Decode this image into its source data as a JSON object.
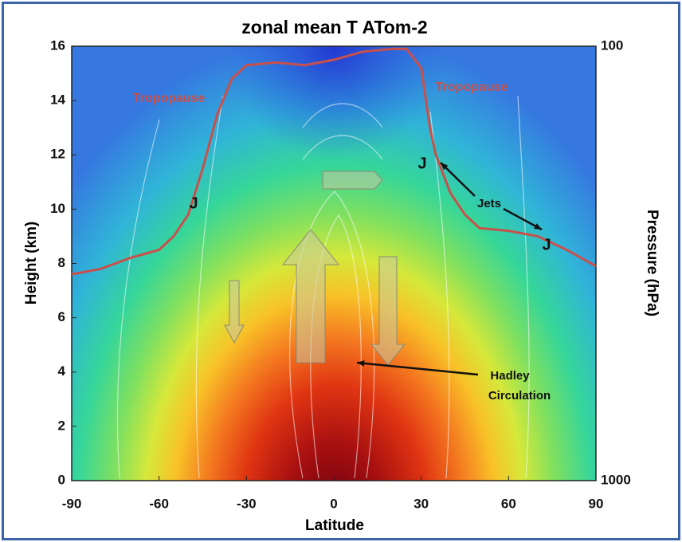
{
  "chart_data": {
    "type": "contour",
    "title": "zonal mean T ATom-2",
    "x_label": "Latitude",
    "y_label": "Height (km)",
    "y2_label": "Pressure (hPa)",
    "xlim": [
      -90,
      90
    ],
    "xticks": [
      -90,
      -60,
      -30,
      0,
      30,
      60,
      90
    ],
    "ylim": [
      0,
      16
    ],
    "yticks": [
      0,
      2,
      4,
      6,
      8,
      10,
      12,
      14,
      16
    ],
    "y2lim": [
      1000,
      100
    ],
    "y2ticks": [
      1000,
      100
    ],
    "y2_log": true,
    "tropopause": {
      "color": "#c9504a",
      "x": [
        -90,
        -80,
        -70,
        -60,
        -55,
        -50,
        -45,
        -40,
        -35,
        -30,
        -20,
        -10,
        0,
        10,
        20,
        25,
        30,
        33,
        35,
        40,
        45,
        50,
        60,
        70,
        80,
        90
      ],
      "y": [
        7.6,
        7.8,
        8.2,
        8.5,
        9,
        9.8,
        11.5,
        13.5,
        14.8,
        15.3,
        15.4,
        15.3,
        15.5,
        15.8,
        15.9,
        15.9,
        15.2,
        13,
        12,
        10.6,
        9.8,
        9.3,
        9.2,
        9,
        8.5,
        7.9
      ]
    },
    "annotations": [
      "Tropopause",
      "Tropopause",
      "J",
      "J",
      "J",
      "Jets",
      "Hadley",
      "Circulation"
    ]
  }
}
